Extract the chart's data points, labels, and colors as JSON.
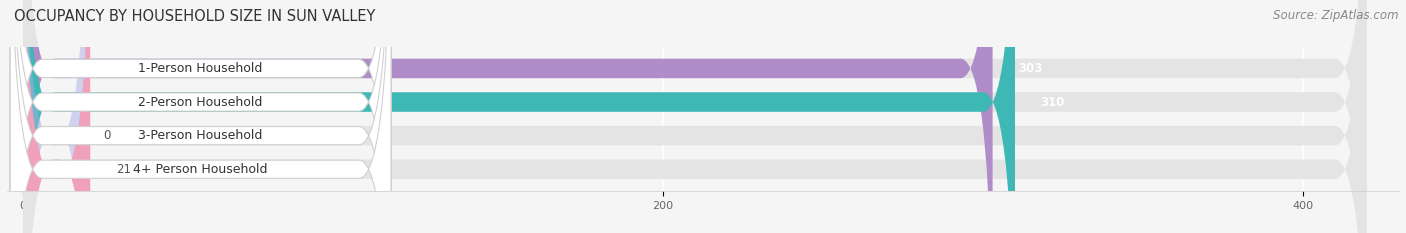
{
  "title": "OCCUPANCY BY HOUSEHOLD SIZE IN SUN VALLEY",
  "source": "Source: ZipAtlas.com",
  "categories": [
    "1-Person Household",
    "2-Person Household",
    "3-Person Household",
    "4+ Person Household"
  ],
  "values": [
    303,
    310,
    0,
    21
  ],
  "bar_colors": [
    "#b08dc8",
    "#3db8b4",
    "#a8b0e8",
    "#f0a0b8"
  ],
  "track_color": "#e4e4e4",
  "label_bg_color": "#ffffff",
  "xlim": [
    -5,
    430
  ],
  "x_max_track": 420,
  "xticks": [
    0,
    200,
    400
  ],
  "background_color": "#f5f5f5",
  "bar_height": 0.58,
  "title_fontsize": 10.5,
  "source_fontsize": 8.5,
  "label_fontsize": 9,
  "value_fontsize": 8.5,
  "rounding_size": 10
}
